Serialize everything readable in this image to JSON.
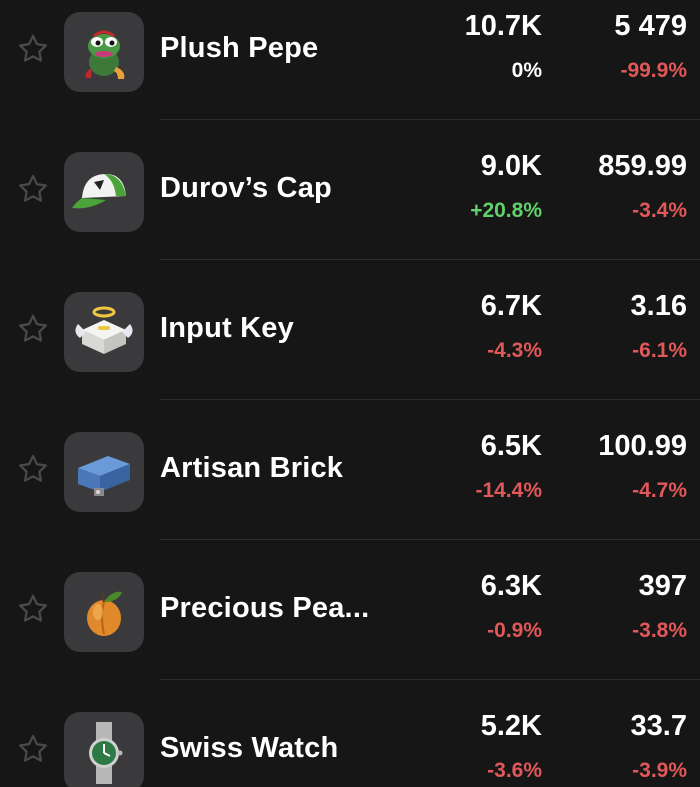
{
  "colors": {
    "background": "#161616",
    "thumb_background": "#3a3a3c",
    "divider": "#2c2c2e",
    "positive": "#5fd06a",
    "negative": "#e15858",
    "neutral": "#ffffff"
  },
  "items": [
    {
      "name": "Plush Pepe",
      "icon": "plush-pepe-icon",
      "volume": "10.7K",
      "volume_change": "0%",
      "volume_trend": "neutral",
      "price": "5 479",
      "price_change": "-99.9%",
      "price_trend": "neg"
    },
    {
      "name": "Durov’s Cap",
      "icon": "durovs-cap-icon",
      "volume": "9.0K",
      "volume_change": "+20.8%",
      "volume_trend": "pos",
      "price": "859.99",
      "price_change": "-3.4%",
      "price_trend": "neg"
    },
    {
      "name": "Input Key",
      "icon": "input-key-icon",
      "volume": "6.7K",
      "volume_change": "-4.3%",
      "volume_trend": "neg",
      "price": "3.16",
      "price_change": "-6.1%",
      "price_trend": "neg"
    },
    {
      "name": "Artisan Brick",
      "icon": "artisan-brick-icon",
      "volume": "6.5K",
      "volume_change": "-14.4%",
      "volume_trend": "neg",
      "price": "100.99",
      "price_change": "-4.7%",
      "price_trend": "neg"
    },
    {
      "name": "Precious Pea...",
      "icon": "precious-peach-icon",
      "volume": "6.3K",
      "volume_change": "-0.9%",
      "volume_trend": "neg",
      "price": "397",
      "price_change": "-3.8%",
      "price_trend": "neg"
    },
    {
      "name": "Swiss Watch",
      "icon": "swiss-watch-icon",
      "volume": "5.2K",
      "volume_change": "-3.6%",
      "volume_trend": "neg",
      "price": "33.7",
      "price_change": "-3.9%",
      "price_trend": "neg"
    }
  ]
}
